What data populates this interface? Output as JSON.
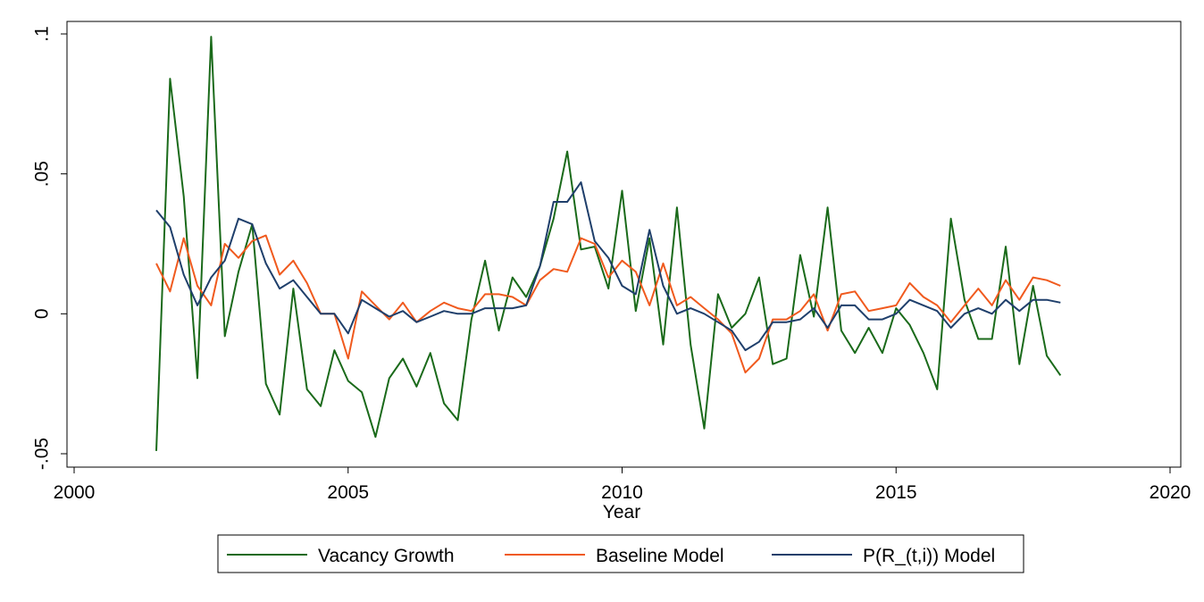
{
  "chart_data": {
    "type": "line",
    "title": "",
    "xlabel": "Year",
    "ylabel": "",
    "xlim": [
      2000,
      2020
    ],
    "ylim": [
      -0.05,
      0.1
    ],
    "x_ticks": [
      {
        "value": 2000,
        "label": "2000"
      },
      {
        "value": 2005,
        "label": "2005"
      },
      {
        "value": 2010,
        "label": "2010"
      },
      {
        "value": 2015,
        "label": "2015"
      },
      {
        "value": 2020,
        "label": "2020"
      }
    ],
    "y_ticks": [
      {
        "value": -0.05,
        "label": "-.05"
      },
      {
        "value": 0,
        "label": "0"
      },
      {
        "value": 0.05,
        "label": ".05"
      },
      {
        "value": 0.1,
        "label": ".1"
      }
    ],
    "grid": false,
    "legend_position": "bottom",
    "x": [
      2001.5,
      2001.75,
      2002.0,
      2002.25,
      2002.5,
      2002.75,
      2003.0,
      2003.25,
      2003.5,
      2003.75,
      2004.0,
      2004.25,
      2004.5,
      2004.75,
      2005.0,
      2005.25,
      2005.5,
      2005.75,
      2006.0,
      2006.25,
      2006.5,
      2006.75,
      2007.0,
      2007.25,
      2007.5,
      2007.75,
      2008.0,
      2008.25,
      2008.5,
      2008.75,
      2009.0,
      2009.25,
      2009.5,
      2009.75,
      2010.0,
      2010.25,
      2010.5,
      2010.75,
      2011.0,
      2011.25,
      2011.5,
      2011.75,
      2012.0,
      2012.25,
      2012.5,
      2012.75,
      2013.0,
      2013.25,
      2013.5,
      2013.75,
      2014.0,
      2014.25,
      2014.5,
      2014.75,
      2015.0,
      2015.25,
      2015.5,
      2015.75,
      2016.0,
      2016.25,
      2016.5,
      2016.75,
      2017.0,
      2017.25,
      2017.5,
      2017.75,
      2018.0
    ],
    "series": [
      {
        "name": "Vacancy Growth",
        "color": "#1a6a1a",
        "values": [
          -0.049,
          0.084,
          0.042,
          -0.023,
          0.099,
          -0.008,
          0.015,
          0.032,
          -0.025,
          -0.036,
          0.009,
          -0.027,
          -0.033,
          -0.013,
          -0.024,
          -0.028,
          -0.044,
          -0.023,
          -0.016,
          -0.026,
          -0.014,
          -0.032,
          -0.038,
          -0.002,
          0.019,
          -0.006,
          0.013,
          0.006,
          0.017,
          0.034,
          0.058,
          0.023,
          0.024,
          0.009,
          0.044,
          0.001,
          0.027,
          -0.011,
          0.038,
          -0.011,
          -0.041,
          0.007,
          -0.005,
          0.0,
          0.013,
          -0.018,
          -0.016,
          0.021,
          -0.001,
          0.038,
          -0.006,
          -0.014,
          -0.005,
          -0.014,
          0.002,
          -0.004,
          -0.014,
          -0.027,
          0.034,
          0.005,
          -0.009,
          -0.009,
          0.024,
          -0.018,
          0.01,
          -0.015,
          -0.022
        ]
      },
      {
        "name": "Baseline Model",
        "color": "#f05a1e",
        "values": [
          0.018,
          0.008,
          0.027,
          0.01,
          0.003,
          0.025,
          0.02,
          0.026,
          0.028,
          0.014,
          0.019,
          0.011,
          0.0,
          0.0,
          -0.016,
          0.008,
          0.003,
          -0.002,
          0.004,
          -0.003,
          0.001,
          0.004,
          0.002,
          0.001,
          0.007,
          0.007,
          0.006,
          0.003,
          0.012,
          0.016,
          0.015,
          0.027,
          0.025,
          0.013,
          0.019,
          0.015,
          0.003,
          0.018,
          0.003,
          0.006,
          0.002,
          -0.002,
          -0.007,
          -0.021,
          -0.016,
          -0.002,
          -0.002,
          0.001,
          0.007,
          -0.006,
          0.007,
          0.008,
          0.001,
          0.002,
          0.003,
          0.011,
          0.006,
          0.003,
          -0.003,
          0.003,
          0.009,
          0.003,
          0.012,
          0.005,
          0.013,
          0.012,
          0.01
        ]
      },
      {
        "name": "P(R_(t,i)) Model",
        "color": "#1f3f6b",
        "values": [
          0.037,
          0.031,
          0.014,
          0.003,
          0.013,
          0.019,
          0.034,
          0.032,
          0.018,
          0.009,
          0.012,
          0.006,
          0.0,
          0.0,
          -0.007,
          0.005,
          0.002,
          -0.001,
          0.001,
          -0.003,
          -0.001,
          0.001,
          0.0,
          0.0,
          0.002,
          0.002,
          0.002,
          0.003,
          0.017,
          0.04,
          0.04,
          0.047,
          0.026,
          0.02,
          0.01,
          0.007,
          0.03,
          0.01,
          0.0,
          0.002,
          0.0,
          -0.003,
          -0.006,
          -0.013,
          -0.01,
          -0.003,
          -0.003,
          -0.002,
          0.002,
          -0.005,
          0.003,
          0.003,
          -0.002,
          -0.002,
          0.0,
          0.005,
          0.003,
          0.001,
          -0.005,
          0.0,
          0.002,
          0.0,
          0.005,
          0.001,
          0.005,
          0.005,
          0.004
        ]
      }
    ]
  }
}
